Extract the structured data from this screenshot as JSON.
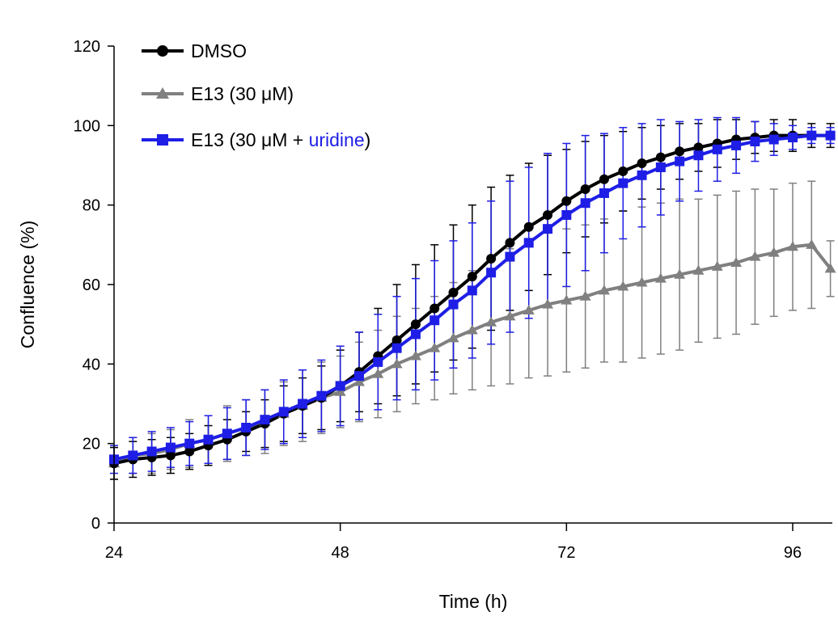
{
  "chart_data": {
    "type": "line",
    "xlabel": "Time (h)",
    "ylabel": "Confluence (%)",
    "xlim": [
      24,
      100
    ],
    "ylim": [
      0,
      120
    ],
    "xticks": [
      24,
      48,
      72,
      96
    ],
    "yticks": [
      0,
      20,
      40,
      60,
      80,
      100,
      120
    ],
    "grid": false,
    "legend_position": "top-left",
    "legend": {
      "dmso": "DMSO",
      "e13": "E13 (30 μM)",
      "e13u_prefix": "E13 (30 μM + ",
      "e13u_highlight": "uridine",
      "e13u_suffix": ")"
    },
    "x": [
      24,
      26,
      28,
      30,
      32,
      34,
      36,
      38,
      40,
      42,
      44,
      46,
      48,
      50,
      52,
      54,
      56,
      58,
      60,
      62,
      64,
      66,
      68,
      70,
      72,
      74,
      76,
      78,
      80,
      82,
      84,
      86,
      88,
      90,
      92,
      94,
      96,
      98,
      100
    ],
    "series": [
      {
        "name": "DMSO",
        "color": "#000000",
        "marker": "circle",
        "values": [
          15,
          16,
          16.5,
          17,
          18,
          19.5,
          21,
          23,
          25,
          27.5,
          29.5,
          31.5,
          34.5,
          38,
          42,
          46,
          50,
          54,
          58,
          62,
          66.5,
          70.5,
          74.5,
          77.5,
          81,
          84,
          86.5,
          88.5,
          90.5,
          92,
          93.5,
          94.5,
          95.5,
          96.5,
          97,
          97.5,
          97.5,
          97.5,
          97.5
        ],
        "errors": [
          4,
          4.5,
          4.5,
          4.5,
          4.5,
          5,
          5,
          5,
          6,
          7,
          7,
          8,
          9,
          10,
          12,
          14,
          15,
          16,
          17,
          18,
          18,
          17,
          16,
          15,
          13,
          12,
          11,
          10,
          9,
          8,
          7,
          6,
          6,
          5,
          4,
          4,
          4,
          3,
          3
        ]
      },
      {
        "name": "E13 (30 μM)",
        "color": "#808080",
        "marker": "triangle",
        "values": [
          15,
          17,
          17.5,
          18.5,
          20,
          21,
          22.5,
          24,
          25.5,
          27.5,
          29.5,
          31.5,
          33,
          35.5,
          37.5,
          40,
          42,
          44,
          46.5,
          48.5,
          50.5,
          52,
          53.5,
          55,
          56,
          57,
          58.5,
          59.5,
          60.5,
          61.5,
          62.5,
          63.5,
          64.5,
          65.5,
          67,
          68,
          69.5,
          70,
          64
        ],
        "errors": [
          4,
          4.5,
          5,
          5,
          6,
          6,
          7,
          7,
          8,
          8,
          9,
          9,
          9,
          10,
          11,
          12,
          12,
          13,
          14,
          15,
          16,
          17,
          17,
          18,
          18,
          18,
          18,
          19,
          19,
          19,
          19,
          18,
          18,
          18,
          17,
          16,
          16,
          16,
          7
        ]
      },
      {
        "name": "E13 (30 μM + uridine)",
        "color": "#1e1ee6",
        "marker": "square",
        "values": [
          16,
          17,
          18,
          19,
          20,
          21,
          22.5,
          24,
          26,
          28,
          30,
          32,
          34.5,
          37,
          40.5,
          44,
          47.5,
          51,
          55,
          58.5,
          63,
          67,
          70.5,
          74,
          77.5,
          80.5,
          83,
          85.5,
          87.5,
          89.5,
          91,
          92.5,
          94,
          95,
          96,
          96.5,
          97,
          97.5,
          97.5
        ],
        "errors": [
          3.5,
          4.5,
          5,
          5,
          5.5,
          6,
          6.5,
          7,
          7.5,
          8,
          8.5,
          9,
          10,
          11,
          12,
          13,
          14,
          15,
          16,
          17,
          18,
          19,
          19,
          19,
          18,
          17,
          15,
          14,
          13,
          12,
          10,
          9,
          8,
          7,
          5,
          4,
          3,
          2,
          2
        ]
      }
    ]
  }
}
